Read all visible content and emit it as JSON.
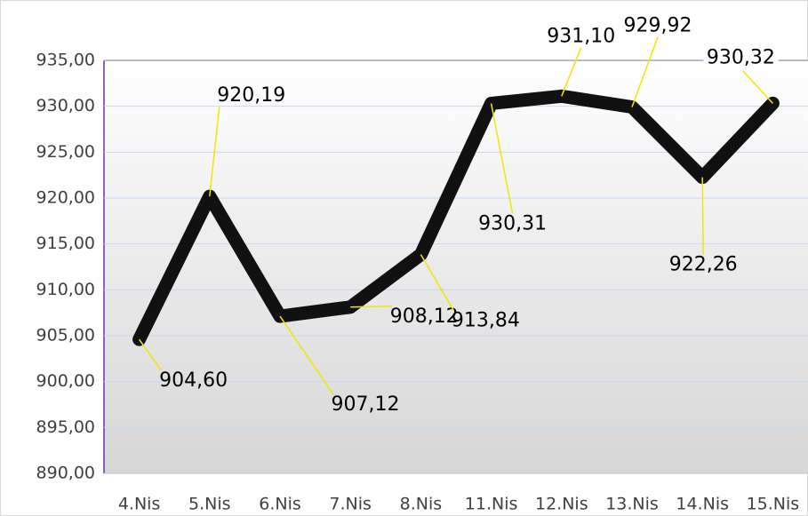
{
  "chart_data": {
    "type": "line",
    "categories": [
      "4.Nis",
      "5.Nis",
      "6.Nis",
      "7.Nis",
      "8.Nis",
      "11.Nis",
      "12.Nis",
      "13.Nis",
      "14.Nis",
      "15.Nis"
    ],
    "series": [
      {
        "color": "#111111",
        "values": [
          904.6,
          920.19,
          907.12,
          908.12,
          913.84,
          930.31,
          931.1,
          929.92,
          922.26,
          930.32
        ],
        "value_labels": [
          "904,60",
          "920,19",
          "907,12",
          "908,12",
          "913,84",
          "930,31",
          "931,10",
          "929,92",
          "922,26",
          "930,32"
        ]
      }
    ],
    "ylim": [
      890,
      935
    ],
    "yticks": [
      {
        "value": 890,
        "label": "890,00"
      },
      {
        "value": 895,
        "label": "895,00"
      },
      {
        "value": 900,
        "label": "900,00"
      },
      {
        "value": 905,
        "label": "905,00"
      },
      {
        "value": 910,
        "label": "910,00"
      },
      {
        "value": 915,
        "label": "915,00"
      },
      {
        "value": 920,
        "label": "920,00"
      },
      {
        "value": 925,
        "label": "925,00"
      },
      {
        "value": 930,
        "label": "930,00"
      },
      {
        "value": 935,
        "label": "935,00"
      }
    ],
    "grid": true
  }
}
